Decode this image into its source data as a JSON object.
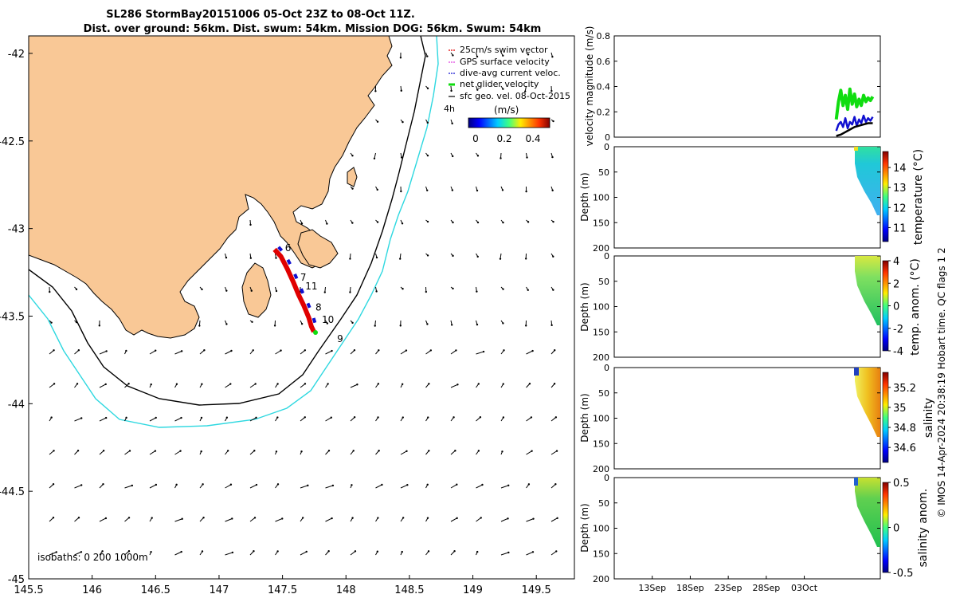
{
  "title": {
    "line1": "SL286 StormBay20151006 05-Oct 23Z to 08-Oct 11Z.",
    "line2": "Dist. over ground: 56km. Dist. swum: 54km. Mission DOG: 56km. Swum: 54km"
  },
  "footer_credit": "© IMOS 14-Apr-2024 20:38:19 Hobart time. QC flags 1  2",
  "colors": {
    "land": "#F9C896",
    "isobath_200": "#000000",
    "isobath_1000": "#2ED8E0",
    "swim_vector": "#E00000",
    "gps_velocity": "#E040E0",
    "dive_avg_current": "#1010D0",
    "net_glider_velocity": "#10DD10",
    "sfc_geo_vel": "#000000"
  },
  "chart_data": [
    {
      "type": "scatter",
      "panel": "map",
      "xlim": [
        145.5,
        149.8
      ],
      "ylim": [
        -45.0,
        -41.9
      ],
      "xticks": [
        "145.5",
        "146",
        "146.5",
        "147",
        "147.5",
        "148",
        "148.5",
        "149",
        "149.5"
      ],
      "xtick_values": [
        145.5,
        146,
        146.5,
        147,
        147.5,
        148,
        148.5,
        149,
        149.5
      ],
      "yticks": [
        "-42",
        "-42.5",
        "-43",
        "-43.5",
        "-44",
        "-44.5",
        "-45"
      ],
      "ytick_values": [
        -42,
        -42.5,
        -43,
        -43.5,
        -44,
        -44.5,
        -45
      ],
      "legend": {
        "placement": "top-right",
        "entries": [
          "25cm/s swim vector",
          "GPS surface velocity",
          "dive-avg current veloc.",
          "net glider velocity",
          "sfc geo. vel. 08-Oct-2015"
        ],
        "scale_label": "4h"
      },
      "colorbar": {
        "label": "(m/s)",
        "ticks": [
          "0",
          "0.2",
          "0.4"
        ],
        "range": [
          0,
          0.5
        ]
      },
      "isobath_text": "isobaths: 0   200  1000m",
      "track": [
        [
          147.45,
          -43.11
        ],
        [
          147.5,
          -43.15
        ],
        [
          147.55,
          -43.22
        ],
        [
          147.6,
          -43.3
        ],
        [
          147.64,
          -43.37
        ],
        [
          147.68,
          -43.43
        ],
        [
          147.72,
          -43.5
        ],
        [
          147.74,
          -43.55
        ],
        [
          147.76,
          -43.58
        ]
      ],
      "track_labels": [
        {
          "text": "6",
          "lon": 147.52,
          "lat": -43.11
        },
        {
          "text": "7",
          "lon": 147.64,
          "lat": -43.28
        },
        {
          "text": "11",
          "lon": 147.68,
          "lat": -43.33
        },
        {
          "text": "8",
          "lon": 147.76,
          "lat": -43.45
        },
        {
          "text": "10",
          "lon": 147.81,
          "lat": -43.52
        },
        {
          "text": "9",
          "lon": 147.93,
          "lat": -43.63
        }
      ]
    },
    {
      "type": "line",
      "panel": "velocity",
      "ylabel": "velocity magnitude (m/s)",
      "ylim": [
        0,
        0.8
      ],
      "yticks": [
        "0",
        "0.2",
        "0.4",
        "0.6",
        "0.8"
      ],
      "ytick_values": [
        0,
        0.2,
        0.4,
        0.6,
        0.8
      ],
      "x_domain": [
        8,
        43
      ],
      "series": [
        {
          "name": "net glider velocity",
          "x": [
            37.2,
            37.5,
            37.8,
            38.1,
            38.4,
            38.7,
            39,
            39.3,
            39.6,
            39.9,
            40.2,
            40.5,
            40.8,
            41.1,
            41.4,
            41.7,
            42
          ],
          "values": [
            0.14,
            0.28,
            0.37,
            0.25,
            0.33,
            0.22,
            0.38,
            0.26,
            0.34,
            0.24,
            0.3,
            0.25,
            0.33,
            0.28,
            0.31,
            0.29,
            0.32
          ]
        },
        {
          "name": "dive-avg current veloc.",
          "x": [
            37.2,
            37.5,
            37.8,
            38.1,
            38.4,
            38.7,
            39,
            39.3,
            39.6,
            39.9,
            40.2,
            40.5,
            40.8,
            41.1,
            41.4,
            41.7,
            42
          ],
          "values": [
            0.05,
            0.1,
            0.12,
            0.08,
            0.15,
            0.07,
            0.12,
            0.1,
            0.16,
            0.09,
            0.14,
            0.11,
            0.17,
            0.12,
            0.15,
            0.13,
            0.16
          ]
        },
        {
          "name": "sfc geo. vel.",
          "x": [
            37.2,
            37.8,
            38.4,
            39,
            39.6,
            40.2,
            40.8,
            41.4,
            42
          ],
          "values": [
            0.01,
            0.02,
            0.04,
            0.06,
            0.08,
            0.09,
            0.1,
            0.11,
            0.11
          ]
        }
      ]
    },
    {
      "type": "heatmap",
      "panel": "temperature",
      "ylabel": "Depth (m)",
      "cbar_label": "temperature (°C)",
      "ylim": [
        200,
        0
      ],
      "yticks": [
        "0",
        "50",
        "100",
        "150",
        "200"
      ],
      "cbar_ticks": [
        "11",
        "12",
        "13",
        "14"
      ],
      "cbar_range": [
        10.3,
        14.8
      ],
      "data_x_range": [
        37.2,
        42
      ],
      "surface_value": 13.2,
      "deep_value": 11.8
    },
    {
      "type": "heatmap",
      "panel": "temp_anomaly",
      "ylabel": "Depth (m)",
      "cbar_label": "temp. anom. (°C)",
      "ylim": [
        200,
        0
      ],
      "yticks": [
        "0",
        "50",
        "100",
        "150",
        "200"
      ],
      "cbar_ticks": [
        "-4",
        "-2",
        "0",
        "2",
        "4"
      ],
      "cbar_range": [
        -4,
        4
      ],
      "data_x_range": [
        37.2,
        42
      ],
      "surface_value": 1.2,
      "deep_value": 0.3
    },
    {
      "type": "heatmap",
      "panel": "salinity",
      "ylabel": "Depth (m)",
      "cbar_label": "salinity",
      "ylim": [
        200,
        0
      ],
      "yticks": [
        "0",
        "50",
        "100",
        "150",
        "200"
      ],
      "cbar_ticks": [
        "34.6",
        "34.8",
        "35",
        "35.2"
      ],
      "cbar_range": [
        34.45,
        35.35
      ],
      "data_x_range": [
        37.2,
        42
      ],
      "surface_value": 35.0,
      "deep_value": 35.2
    },
    {
      "type": "heatmap",
      "panel": "salinity_anomaly",
      "ylabel": "Depth (m)",
      "cbar_label": "salinity anom.",
      "ylim": [
        200,
        0
      ],
      "yticks": [
        "0",
        "50",
        "100",
        "150",
        "200"
      ],
      "cbar_ticks": [
        "-0.5",
        "0",
        "0.5"
      ],
      "cbar_range": [
        -0.5,
        0.5
      ],
      "data_x_range": [
        37.2,
        42
      ],
      "surface_value": 0.15,
      "deep_value": 0.1,
      "xticks": [
        "13Sep",
        "18Sep",
        "23Sep",
        "28Sep",
        "03Oct"
      ],
      "xtick_values": [
        13,
        18,
        23,
        28,
        33
      ]
    }
  ]
}
